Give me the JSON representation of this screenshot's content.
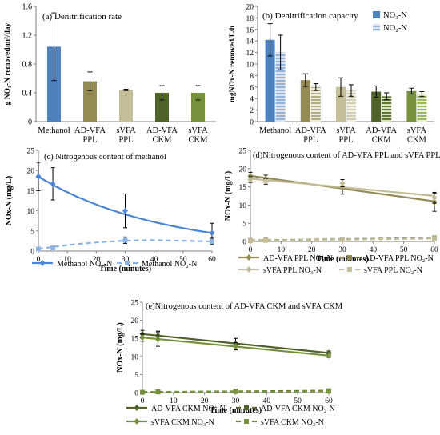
{
  "chart_data": [
    {
      "id": "a",
      "type": "bar",
      "title": "(a) Denitrification rate",
      "ylabel": "g NO₃-N removed/m²/day",
      "xlabel": "",
      "ylim": [
        0,
        1.6
      ],
      "yticks": [
        "0",
        "0.4",
        "0.8",
        "1.2",
        "1.6"
      ],
      "categories": [
        "Methanol",
        "AD-VFA PPL",
        "sVFA PPL",
        "AD-VFA CKM",
        "sVFA CKM"
      ],
      "values": [
        1.04,
        0.56,
        0.44,
        0.4,
        0.4
      ],
      "errors": [
        0.47,
        0.13,
        0.01,
        0.1,
        0.1
      ],
      "colors": [
        "#4f81bd",
        "#948a54",
        "#c4bd97",
        "#4f6228",
        "#76923c"
      ],
      "grid": false
    },
    {
      "id": "b",
      "type": "bar",
      "title": "(b) Denitrification  capacity",
      "ylabel": "mgNOx-N removed/L/h",
      "xlabel": "",
      "ylim": [
        0,
        20
      ],
      "yticks": [
        "0",
        "2",
        "4",
        "6",
        "8",
        "10",
        "12",
        "14",
        "16",
        "18",
        "20"
      ],
      "categories": [
        "Methanol",
        "AD-VFA PPL",
        "sVFA PPL",
        "AD-VFA CKM",
        "sVFA CKM"
      ],
      "series": [
        {
          "name": "NO₃-N",
          "values": [
            14.2,
            7.2,
            6.0,
            5.2,
            5.3
          ],
          "errors": [
            2.8,
            1.1,
            1.6,
            1.0,
            0.5
          ],
          "colors": [
            "#4f81bd",
            "#948a54",
            "#c4bd97",
            "#4f6228",
            "#76923c"
          ]
        },
        {
          "name": "NO₂-N",
          "values": [
            12.0,
            6.0,
            5.4,
            4.4,
            4.8
          ],
          "errors": [
            3.0,
            0.6,
            1.0,
            0.6,
            0.4
          ],
          "colors": [
            "#b8cce4",
            "#c4bd97",
            "#ddd9c4",
            "#76923c",
            "#c3d69b"
          ]
        }
      ],
      "legend": "top-right",
      "grid": false
    },
    {
      "id": "c",
      "type": "line",
      "title": "(c) Nitrogenous content of methanol",
      "xlabel": "Time (minutes)",
      "ylabel": "NOx-N (mg/L)",
      "xlim": [
        0,
        60
      ],
      "ylim": [
        0,
        25
      ],
      "xticks": [
        "0",
        "10",
        "20",
        "30",
        "40",
        "50",
        "60"
      ],
      "yticks": [
        "0",
        "5",
        "10",
        "15",
        "20",
        "25"
      ],
      "series": [
        {
          "name": "Methanol NO₃-N",
          "x": [
            0,
            5,
            30,
            60
          ],
          "y": [
            18.5,
            16.7,
            10.0,
            4.5
          ],
          "errors": [
            3.5,
            4.0,
            4.2,
            2.4
          ],
          "color": "#4a86d4",
          "dashed": false
        },
        {
          "name": "Methanol NO₂-N",
          "x": [
            0,
            5,
            30,
            60
          ],
          "y": [
            0.5,
            0.8,
            2.7,
            2.4
          ],
          "errors": [
            0.3,
            0.3,
            0.8,
            0.8
          ],
          "color": "#8db3e2",
          "dashed": true
        }
      ],
      "legend": "bottom",
      "grid": false
    },
    {
      "id": "d",
      "type": "line",
      "title": "(d)Nitrogenous content of AD-VFA PPL and sVFA PPL",
      "xlabel": "Time (minutes)",
      "ylabel": "NOx-N (mg/L)",
      "xlim": [
        0,
        60
      ],
      "ylim": [
        0,
        25
      ],
      "xticks": [
        "0",
        "10",
        "20",
        "30",
        "40",
        "50",
        "60"
      ],
      "yticks": [
        "0",
        "5",
        "10",
        "15",
        "20",
        "25"
      ],
      "series": [
        {
          "name": "AD-VFA PPL NO₃-N",
          "x": [
            0,
            5,
            30,
            60
          ],
          "y": [
            18.0,
            17.2,
            15.0,
            10.8
          ],
          "errors": [
            1.0,
            1.0,
            2.0,
            2.5
          ],
          "color": "#948a54",
          "dashed": false
        },
        {
          "name": "AD-VFA PPL NO₂-N",
          "x": [
            0,
            5,
            30,
            60
          ],
          "y": [
            0.3,
            0.4,
            0.6,
            1.0
          ],
          "errors": [
            0.2,
            0.2,
            0.3,
            0.4
          ],
          "color": "#948a54",
          "dashed": true
        },
        {
          "name": "sVFA PPL NO₃-N",
          "x": [
            0,
            5,
            30,
            60
          ],
          "y": [
            17.0,
            16.5,
            16.0,
            12.0
          ],
          "errors": [
            0.8,
            0.8,
            1.0,
            1.5
          ],
          "color": "#c4bd97",
          "dashed": false
        },
        {
          "name": "sVFA PPL NO₂-N",
          "x": [
            0,
            5,
            30,
            60
          ],
          "y": [
            0.2,
            0.3,
            0.5,
            0.8
          ],
          "errors": [
            0.1,
            0.1,
            0.2,
            0.3
          ],
          "color": "#c4bd97",
          "dashed": true
        }
      ],
      "legend": "bottom",
      "grid": false
    },
    {
      "id": "e",
      "type": "line",
      "title": "(e)Nitrogenous  content of AD-VFA CKM and sVFA CKM",
      "xlabel": "Time (minutes)",
      "ylabel": "NOx-N (mg/L)",
      "xlim": [
        0,
        60
      ],
      "ylim": [
        0,
        25
      ],
      "xticks": [
        "0",
        "10",
        "20",
        "30",
        "40",
        "50",
        "60"
      ],
      "yticks": [
        "0",
        "5",
        "10",
        "15",
        "20",
        "25"
      ],
      "series": [
        {
          "name": "AD-VFA CKM NO₃-N",
          "x": [
            0,
            5,
            30,
            60
          ],
          "y": [
            16.2,
            15.8,
            13.5,
            11.0
          ],
          "errors": [
            1.0,
            1.2,
            1.5,
            0.5
          ],
          "color": "#4f6228",
          "dashed": false
        },
        {
          "name": "AD-VFA CKM NO₂-N",
          "x": [
            0,
            5,
            30,
            60
          ],
          "y": [
            0.1,
            0.2,
            0.4,
            0.5
          ],
          "errors": [
            0.1,
            0.1,
            0.2,
            0.2
          ],
          "color": "#4f6228",
          "dashed": true
        },
        {
          "name": "sVFA CKM NO₃-N",
          "x": [
            0,
            5,
            30,
            60
          ],
          "y": [
            15.2,
            14.8,
            12.8,
            10.2
          ],
          "errors": [
            1.0,
            2.0,
            1.0,
            0.5
          ],
          "color": "#76923c",
          "dashed": false
        },
        {
          "name": "sVFA CKM NO₂-N",
          "x": [
            0,
            5,
            30,
            60
          ],
          "y": [
            0.1,
            0.2,
            0.3,
            0.4
          ],
          "errors": [
            0.1,
            0.1,
            0.1,
            0.2
          ],
          "color": "#76923c",
          "dashed": true
        }
      ],
      "legend": "bottom",
      "grid": false
    }
  ]
}
